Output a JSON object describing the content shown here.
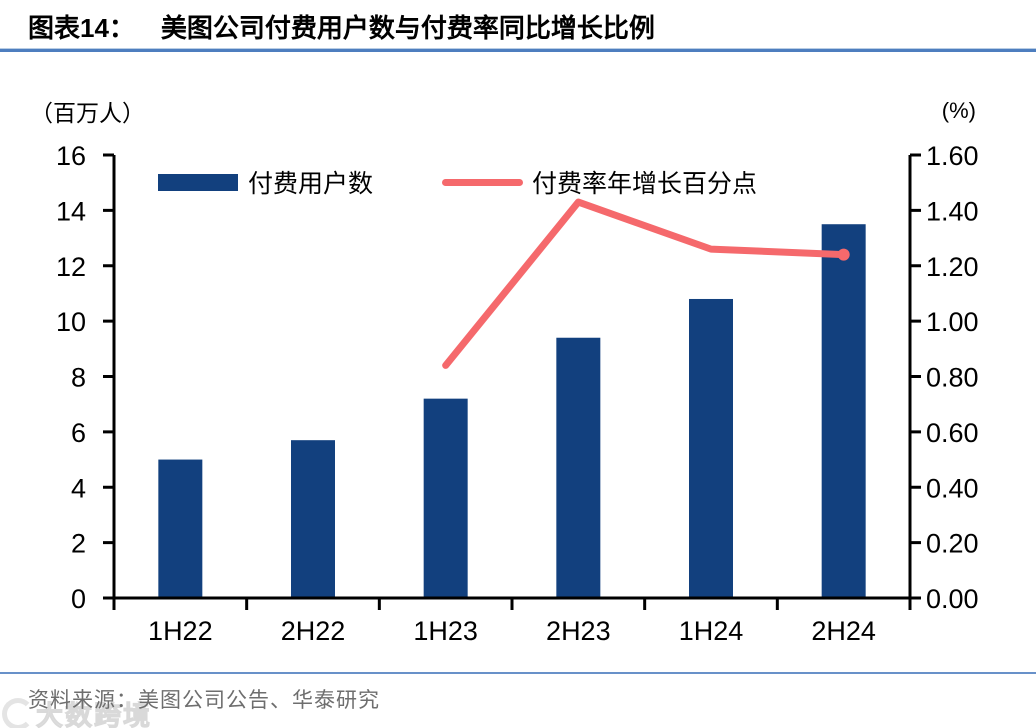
{
  "header": {
    "fig_label": "图表14：",
    "title": "美图公司付费用户数与付费率同比增长比例"
  },
  "chart_data": {
    "type": "bar",
    "subtype": "bar+line combo, dual axis",
    "categories": [
      "1H22",
      "2H22",
      "1H23",
      "2H23",
      "1H24",
      "2H24"
    ],
    "series": [
      {
        "name": "付费用户数",
        "type": "bar",
        "axis": "left",
        "values": [
          5.0,
          5.7,
          7.2,
          9.4,
          10.8,
          13.5
        ]
      },
      {
        "name": "付费率年增长百分点",
        "type": "line",
        "axis": "right",
        "values": [
          null,
          null,
          0.84,
          1.43,
          1.26,
          1.24
        ]
      }
    ],
    "left_axis": {
      "unit": "（百万人）",
      "min": 0,
      "max": 16,
      "tick_step": 2,
      "tick_labels": [
        "0",
        "2",
        "4",
        "6",
        "8",
        "10",
        "12",
        "14",
        "16"
      ]
    },
    "right_axis": {
      "unit": "(%)",
      "min": 0,
      "max": 1.6,
      "tick_step": 0.2,
      "tick_labels": [
        "0.00",
        "0.20",
        "0.40",
        "0.60",
        "0.80",
        "1.00",
        "1.20",
        "1.40",
        "1.60"
      ]
    },
    "grid": false,
    "legend_position": "top-inside"
  },
  "footer": {
    "source": "资料来源：美图公司公告、华泰研究",
    "watermark": "大数跨境"
  },
  "colors": {
    "bar": "#12407E",
    "line": "#F5696C",
    "rule": "#4D7EBF",
    "axis": "#000000",
    "source_text": "#6E6E6E",
    "watermark": "#E3E3E3"
  }
}
